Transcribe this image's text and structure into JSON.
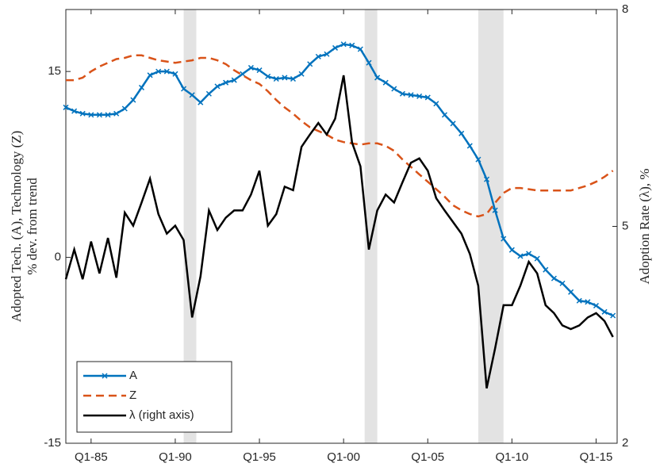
{
  "chart_data": {
    "type": "line",
    "ylabel": [
      "Adopted Tech. (A), Technology (Z)",
      "% dev. from trend"
    ],
    "y2label": "Adoption Rate (λ), %",
    "x": [
      1983.5,
      1984,
      1984.5,
      1985,
      1985.5,
      1986,
      1986.5,
      1987,
      1987.5,
      1988,
      1988.5,
      1989,
      1989.5,
      1990,
      1990.5,
      1991,
      1991.5,
      1992,
      1992.5,
      1993,
      1993.5,
      1994,
      1994.5,
      1995,
      1995.5,
      1996,
      1996.5,
      1997,
      1997.5,
      1998,
      1998.5,
      1999,
      1999.5,
      2000,
      2000.5,
      2001,
      2001.5,
      2002,
      2002.5,
      2003,
      2003.5,
      2004,
      2004.5,
      2005,
      2005.5,
      2006,
      2006.5,
      2007,
      2007.5,
      2008,
      2008.5,
      2009,
      2009.5,
      2010,
      2010.5,
      2011,
      2011.5,
      2012,
      2012.5,
      2013,
      2013.5,
      2014,
      2014.5,
      2015,
      2015.5,
      2016
    ],
    "series": [
      {
        "name": "A",
        "color": "#0072bd",
        "marker": "x",
        "dash": "solid",
        "values": [
          12.1,
          11.8,
          11.6,
          11.5,
          11.5,
          11.5,
          11.6,
          12.0,
          12.7,
          13.7,
          14.7,
          15.0,
          15.0,
          14.8,
          13.6,
          13.1,
          12.5,
          13.2,
          13.8,
          14.1,
          14.3,
          14.8,
          15.3,
          15.1,
          14.6,
          14.4,
          14.5,
          14.4,
          14.8,
          15.6,
          16.2,
          16.4,
          16.9,
          17.2,
          17.1,
          16.8,
          15.7,
          14.5,
          14.1,
          13.6,
          13.2,
          13.1,
          13.0,
          12.9,
          12.4,
          11.5,
          10.8,
          10.0,
          9.0,
          7.9,
          6.3,
          3.8,
          1.5,
          0.6,
          0.1,
          0.3,
          -0.1,
          -1.0,
          -1.7,
          -2.1,
          -2.8,
          -3.5,
          -3.6,
          -3.9,
          -4.4,
          -4.7
        ]
      },
      {
        "name": "Z",
        "color": "#d95319",
        "dash": "dashed",
        "values": [
          14.3,
          14.3,
          14.5,
          15.0,
          15.4,
          15.7,
          16.0,
          16.1,
          16.3,
          16.3,
          16.1,
          15.9,
          15.8,
          15.7,
          15.8,
          15.9,
          16.1,
          16.1,
          15.9,
          15.6,
          15.1,
          14.7,
          14.3,
          14.0,
          13.4,
          12.7,
          12.1,
          11.6,
          11.0,
          10.5,
          10.2,
          9.9,
          9.5,
          9.3,
          9.2,
          9.1,
          9.2,
          9.2,
          9.0,
          8.6,
          7.9,
          7.3,
          6.7,
          6.1,
          5.5,
          4.9,
          4.2,
          3.8,
          3.5,
          3.3,
          3.5,
          4.4,
          5.2,
          5.6,
          5.6,
          5.5,
          5.4,
          5.4,
          5.4,
          5.4,
          5.4,
          5.6,
          5.8,
          6.1,
          6.5,
          7.0
        ]
      },
      {
        "name": "λ (right axis)",
        "color": "#000000",
        "dash": "solid",
        "axis": "y2",
        "values": [
          4.27,
          4.68,
          4.27,
          4.79,
          4.35,
          4.84,
          4.29,
          5.19,
          5.01,
          5.33,
          5.66,
          5.17,
          4.9,
          5.01,
          4.81,
          3.74,
          4.31,
          5.22,
          4.95,
          5.12,
          5.22,
          5.22,
          5.44,
          5.77,
          5.01,
          5.17,
          5.55,
          5.5,
          6.1,
          6.27,
          6.43,
          6.27,
          6.49,
          7.09,
          6.16,
          5.83,
          4.68,
          5.22,
          5.44,
          5.33,
          5.61,
          5.88,
          5.94,
          5.77,
          5.39,
          5.22,
          5.06,
          4.9,
          4.62,
          4.18,
          2.76,
          3.31,
          3.91,
          3.91,
          4.18,
          4.51,
          4.35,
          3.91,
          3.8,
          3.63,
          3.58,
          3.63,
          3.74,
          3.8,
          3.69,
          3.47
        ]
      }
    ],
    "shaded_periods": [
      [
        1990.5,
        1991.25
      ],
      [
        2001.25,
        2002
      ],
      [
        2008,
        2009.5
      ]
    ],
    "shade_color": "#e3e3e3",
    "xlim": [
      1983.5,
      2016.25
    ],
    "xticks": [
      {
        "value": 1985,
        "label": "Q1-85"
      },
      {
        "value": 1990,
        "label": "Q1-90"
      },
      {
        "value": 1995,
        "label": "Q1-95"
      },
      {
        "value": 2000,
        "label": "Q1-00"
      },
      {
        "value": 2005,
        "label": "Q1-05"
      },
      {
        "value": 2010,
        "label": "Q1-10"
      },
      {
        "value": 2015,
        "label": "Q1-15"
      }
    ],
    "ylim": [
      -15,
      20
    ],
    "yticks": [
      -15,
      0,
      15
    ],
    "y2lim": [
      2,
      8
    ],
    "y2ticks": [
      2,
      5,
      8
    ],
    "legend": "lower left",
    "grid": false
  }
}
